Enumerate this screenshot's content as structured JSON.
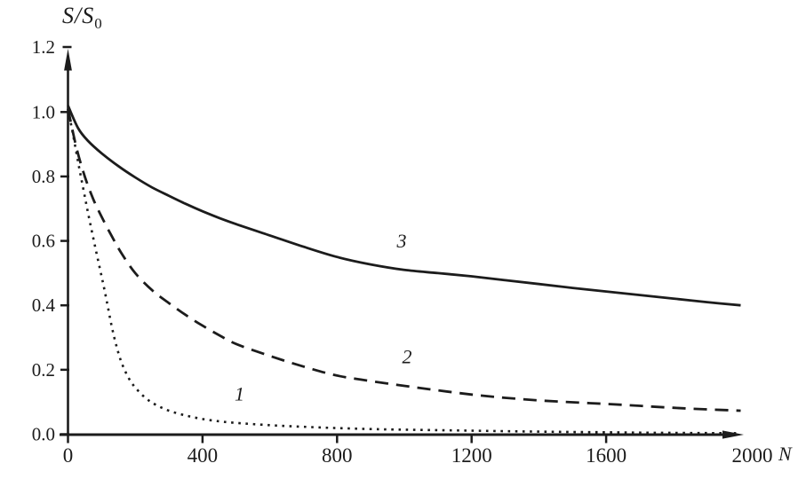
{
  "figure": {
    "background": "#ffffff",
    "ink_color": "#1c1c1c"
  },
  "chart_data": {
    "type": "line",
    "title": "",
    "xlabel": "N",
    "ylabel": "S/S0",
    "y_axis_title": {
      "main": "S/S",
      "sub": "0"
    },
    "xlim": [
      0,
      2000
    ],
    "ylim": [
      0,
      1.2
    ],
    "grid": false,
    "legend_position": "inline-curve-labels",
    "x_ticks": {
      "values": [
        0,
        400,
        800,
        1200,
        1600,
        2000
      ],
      "labels": [
        "0",
        "400",
        "800",
        "1200",
        "1600",
        "2000"
      ]
    },
    "y_ticks": {
      "values": [
        0,
        0.2,
        0.4,
        0.6,
        0.8,
        1.0,
        1.2
      ],
      "labels": [
        "0.0",
        "0.2",
        "0.4",
        "0.6",
        "0.8",
        "1.0",
        "1.2"
      ]
    },
    "series": [
      {
        "name": "curve-1",
        "label": "1",
        "style": "dotted",
        "label_at": {
          "x": 510,
          "y": 0.105
        },
        "points": [
          [
            0,
            1.01
          ],
          [
            15,
            0.93
          ],
          [
            30,
            0.845
          ],
          [
            45,
            0.765
          ],
          [
            60,
            0.685
          ],
          [
            80,
            0.585
          ],
          [
            100,
            0.49
          ],
          [
            115,
            0.415
          ],
          [
            130,
            0.335
          ],
          [
            145,
            0.27
          ],
          [
            160,
            0.22
          ],
          [
            180,
            0.175
          ],
          [
            200,
            0.145
          ],
          [
            230,
            0.113
          ],
          [
            260,
            0.092
          ],
          [
            300,
            0.073
          ],
          [
            350,
            0.058
          ],
          [
            400,
            0.047
          ],
          [
            450,
            0.04
          ],
          [
            500,
            0.035
          ],
          [
            600,
            0.028
          ],
          [
            700,
            0.023
          ],
          [
            800,
            0.019
          ],
          [
            900,
            0.016
          ],
          [
            1000,
            0.014
          ],
          [
            1200,
            0.011
          ],
          [
            1400,
            0.008
          ],
          [
            1600,
            0.006
          ],
          [
            1800,
            0.004
          ],
          [
            2000,
            0.003
          ]
        ]
      },
      {
        "name": "curve-2",
        "label": "2",
        "style": "dashed",
        "label_at": {
          "x": 1008,
          "y": 0.22
        },
        "points": [
          [
            0,
            1.01
          ],
          [
            25,
            0.89
          ],
          [
            50,
            0.8
          ],
          [
            75,
            0.73
          ],
          [
            100,
            0.675
          ],
          [
            130,
            0.615
          ],
          [
            160,
            0.56
          ],
          [
            200,
            0.5
          ],
          [
            250,
            0.447
          ],
          [
            300,
            0.407
          ],
          [
            350,
            0.37
          ],
          [
            400,
            0.337
          ],
          [
            450,
            0.307
          ],
          [
            500,
            0.28
          ],
          [
            600,
            0.243
          ],
          [
            700,
            0.21
          ],
          [
            800,
            0.182
          ],
          [
            900,
            0.165
          ],
          [
            1000,
            0.15
          ],
          [
            1100,
            0.136
          ],
          [
            1200,
            0.123
          ],
          [
            1300,
            0.113
          ],
          [
            1400,
            0.105
          ],
          [
            1500,
            0.099
          ],
          [
            1600,
            0.094
          ],
          [
            1700,
            0.088
          ],
          [
            1800,
            0.082
          ],
          [
            1900,
            0.077
          ],
          [
            2000,
            0.073
          ]
        ]
      },
      {
        "name": "curve-3",
        "label": "3",
        "style": "solid",
        "label_at": {
          "x": 992,
          "y": 0.58
        },
        "points": [
          [
            0,
            1.02
          ],
          [
            30,
            0.95
          ],
          [
            60,
            0.91
          ],
          [
            100,
            0.872
          ],
          [
            150,
            0.832
          ],
          [
            200,
            0.797
          ],
          [
            250,
            0.766
          ],
          [
            300,
            0.74
          ],
          [
            350,
            0.715
          ],
          [
            400,
            0.692
          ],
          [
            450,
            0.671
          ],
          [
            500,
            0.652
          ],
          [
            600,
            0.617
          ],
          [
            700,
            0.582
          ],
          [
            800,
            0.55
          ],
          [
            900,
            0.527
          ],
          [
            1000,
            0.51
          ],
          [
            1100,
            0.5
          ],
          [
            1200,
            0.49
          ],
          [
            1300,
            0.478
          ],
          [
            1400,
            0.466
          ],
          [
            1500,
            0.454
          ],
          [
            1600,
            0.443
          ],
          [
            1700,
            0.432
          ],
          [
            1800,
            0.421
          ],
          [
            1900,
            0.41
          ],
          [
            2000,
            0.4
          ]
        ]
      }
    ]
  }
}
